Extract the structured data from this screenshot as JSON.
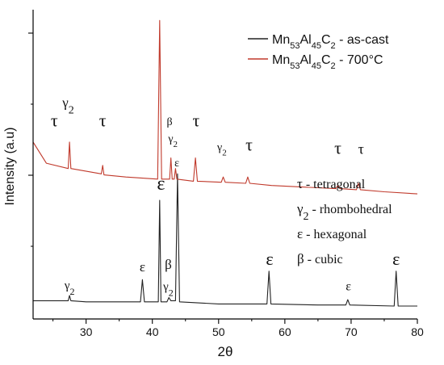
{
  "chart_data": {
    "type": "line",
    "xlabel": "2θ",
    "ylabel": "Intensity (a.u)",
    "xlim": [
      22,
      80
    ],
    "xticks": [
      30,
      40,
      50,
      60,
      70,
      80
    ],
    "legend_position": "top-right",
    "series": [
      {
        "name_parts": [
          "Mn",
          "53",
          "Al",
          "45",
          "C",
          "2",
          " - as-cast"
        ],
        "color": "#222222",
        "x": [
          22,
          25,
          27.3,
          27.5,
          27.7,
          30,
          35,
          38.2,
          38.5,
          38.8,
          40.9,
          41.1,
          41.3,
          42.2,
          42.5,
          42.8,
          43.5,
          43.8,
          44.1,
          50,
          57.3,
          57.6,
          57.9,
          65,
          69.2,
          69.5,
          69.8,
          76.5,
          76.8,
          77.1,
          80
        ],
        "y": [
          0.05,
          0.05,
          0.05,
          0.1,
          0.05,
          0.04,
          0.04,
          0.04,
          0.25,
          0.04,
          0.04,
          1.0,
          0.04,
          0.04,
          0.08,
          0.05,
          0.05,
          1.25,
          0.04,
          0.02,
          0.02,
          0.33,
          0.02,
          0.01,
          0.01,
          0.06,
          0.01,
          0.0,
          0.33,
          0.0,
          0.0
        ]
      },
      {
        "name_parts": [
          "Mn",
          "53",
          "Al",
          "45",
          "C",
          "2",
          " - 700°C"
        ],
        "color": "#c0392b",
        "x": [
          22,
          24,
          27.3,
          27.5,
          27.7,
          32.3,
          32.5,
          32.7,
          36,
          40.8,
          41.1,
          41.4,
          42.6,
          42.8,
          43.0,
          43.3,
          43.5,
          43.7,
          46.2,
          46.5,
          46.8,
          50.4,
          50.7,
          51.0,
          54.1,
          54.4,
          54.7,
          58,
          67.7,
          68.0,
          68.3,
          70.8,
          71.1,
          71.4,
          75,
          80
        ],
        "y": [
          1.55,
          1.35,
          1.3,
          1.55,
          1.3,
          1.25,
          1.33,
          1.24,
          1.22,
          1.2,
          2.7,
          1.2,
          1.2,
          1.4,
          1.2,
          1.2,
          1.3,
          1.2,
          1.18,
          1.4,
          1.18,
          1.17,
          1.22,
          1.17,
          1.16,
          1.22,
          1.16,
          1.14,
          1.11,
          1.14,
          1.11,
          1.1,
          1.16,
          1.1,
          1.08,
          1.06
        ]
      }
    ],
    "annotations": [
      {
        "text": "τ",
        "x": 25.2,
        "y": 1.7,
        "size": 22
      },
      {
        "text": "γ",
        "sub": "2",
        "x": 27.3,
        "y": 1.88,
        "size": 17
      },
      {
        "text": "τ",
        "x": 32.5,
        "y": 1.7,
        "size": 22
      },
      {
        "text": "τ",
        "x": 41.2,
        "y": 3.0,
        "size": 24
      },
      {
        "text": "β",
        "x": 42.6,
        "y": 1.71,
        "size": 14
      },
      {
        "text": "γ",
        "sub": "2",
        "x": 43.1,
        "y": 1.55,
        "size": 14
      },
      {
        "text": "τ",
        "x": 46.6,
        "y": 1.7,
        "size": 22
      },
      {
        "text": "γ",
        "sub": "2",
        "x": 50.5,
        "y": 1.47,
        "size": 14
      },
      {
        "text": "τ",
        "x": 54.6,
        "y": 1.47,
        "size": 22
      },
      {
        "text": "τ",
        "x": 68.0,
        "y": 1.44,
        "size": 22
      },
      {
        "text": "τ",
        "x": 71.5,
        "y": 1.44,
        "size": 18
      },
      {
        "text": "ε",
        "x": 41.3,
        "y": 1.1,
        "size": 24
      },
      {
        "text": "ε",
        "x": 43.7,
        "y": 1.32,
        "size": 14
      },
      {
        "text": "ε",
        "x": 38.5,
        "y": 0.33,
        "size": 17
      },
      {
        "text": "β",
        "x": 42.4,
        "y": 0.35,
        "size": 17
      },
      {
        "text": "γ",
        "sub": "2",
        "x": 42.4,
        "y": 0.15,
        "size": 15
      },
      {
        "text": "γ",
        "sub": "2",
        "x": 27.5,
        "y": 0.16,
        "size": 15
      },
      {
        "text": "ε",
        "x": 57.7,
        "y": 0.39,
        "size": 22
      },
      {
        "text": "ε",
        "x": 69.6,
        "y": 0.15,
        "size": 16
      },
      {
        "text": "ε",
        "x": 76.8,
        "y": 0.39,
        "size": 22
      }
    ],
    "phase_key": [
      {
        "sym": "τ",
        "text": " - tetragonal"
      },
      {
        "sym": "γ",
        "sub": "2",
        "text": " - rhombohedral"
      },
      {
        "sym": "ε",
        "text": " - hexagonal"
      },
      {
        "sym": "β",
        "text": " - cubic"
      }
    ]
  }
}
